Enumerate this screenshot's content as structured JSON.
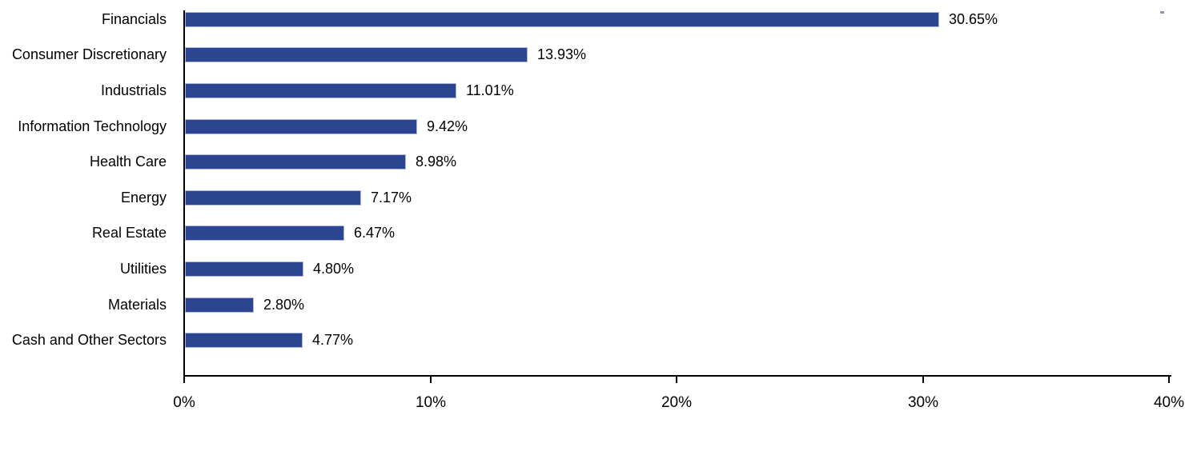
{
  "chart_data": {
    "type": "bar",
    "orientation": "horizontal",
    "categories": [
      "Financials",
      "Consumer Discretionary",
      "Industrials",
      "Information Technology",
      "Health Care",
      "Energy",
      "Real Estate",
      "Utilities",
      "Materials",
      "Cash and Other Sectors"
    ],
    "values": [
      30.65,
      13.93,
      11.01,
      9.42,
      8.98,
      7.17,
      6.47,
      4.8,
      2.8,
      4.77
    ],
    "value_labels": [
      "30.65%",
      "13.93%",
      "11.01%",
      "9.42%",
      "8.98%",
      "7.17%",
      "6.47%",
      "4.80%",
      "2.80%",
      "4.77%"
    ],
    "x_axis": {
      "min": 0,
      "max": 40,
      "ticks": [
        0,
        10,
        20,
        30,
        40
      ],
      "tick_labels": [
        "0%",
        "10%",
        "20%",
        "30%",
        "40%"
      ]
    },
    "grid": "off",
    "legend": "none",
    "bar_color": "#2B4590",
    "bar_border_color": "#AEB7DC",
    "axis_color": "#000000",
    "label_color": "#000000",
    "background_color": "#FFFFFF"
  }
}
